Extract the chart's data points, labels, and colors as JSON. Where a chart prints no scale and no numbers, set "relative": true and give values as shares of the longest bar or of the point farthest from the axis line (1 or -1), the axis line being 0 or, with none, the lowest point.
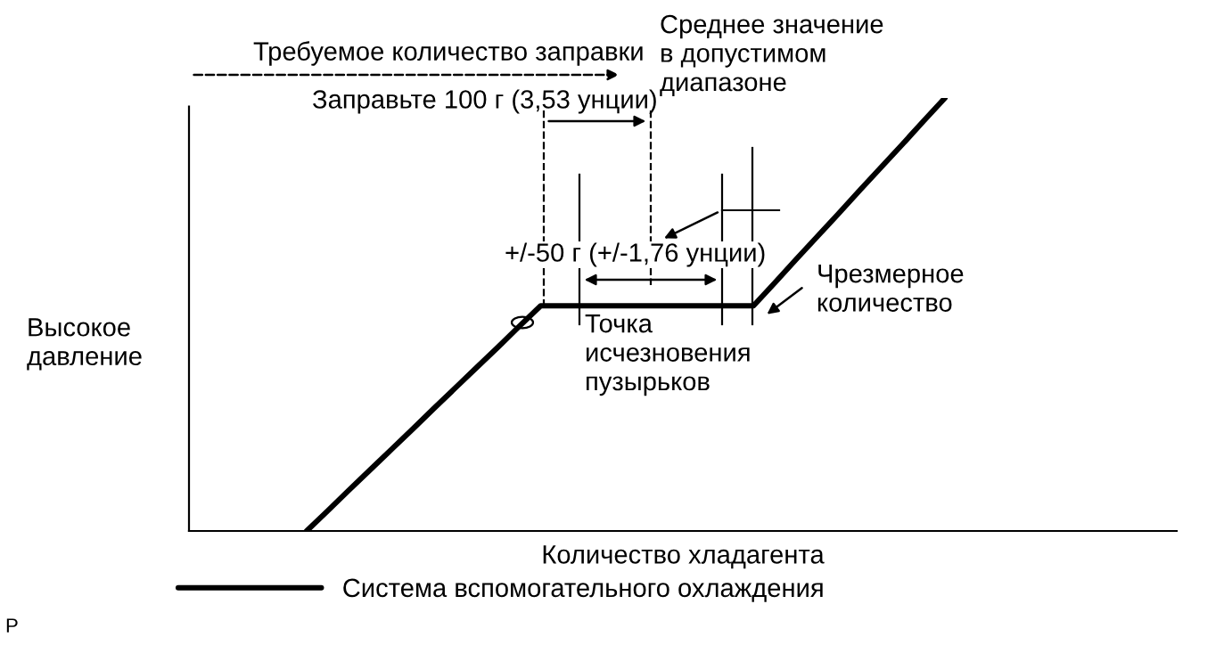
{
  "chart_data": {
    "type": "line",
    "relative": true,
    "xlabel": "Количество хладагента",
    "categories": [
      null,
      null,
      null,
      null,
      null,
      null,
      null,
      null,
      null,
      null,
      null,
      null,
      null,
      null,
      null,
      null,
      null,
      null,
      null,
      null,
      null,
      null,
      null,
      null,
      null,
      null,
      null,
      null,
      null,
      null,
      null
    ],
    "series": [
      {
        "name": "Система вспомогательного охлаждения",
        "color": "#000000",
        "values": [
          0,
          0.047,
          0.095,
          0.142,
          0.189,
          0.236,
          0.284,
          0.331,
          0.378,
          0.425,
          0.473,
          0.52,
          0.52,
          0.52,
          0.52,
          0.52,
          0.52,
          0.52,
          0.52,
          0.52,
          0.52,
          0.52,
          0.573,
          0.627,
          0.68,
          0.733,
          0.787,
          0.84,
          0.893,
          0.947,
          1
        ]
      }
    ],
    "annotations": [
      "Требуемое количество заправки",
      "Заправьте 100 г (3,53 унции)",
      "Среднее значение\nв допустимом\nдиапазоне",
      "+/-50 г (+/-1,76 унции)",
      "Точка\nисчезновения\nпузырьков",
      "Чрезмерное\nколичество",
      "P",
      "Высокое\nдавление"
    ],
    "legend": "bottom left",
    "marker": "none",
    "line_style": "solid"
  }
}
